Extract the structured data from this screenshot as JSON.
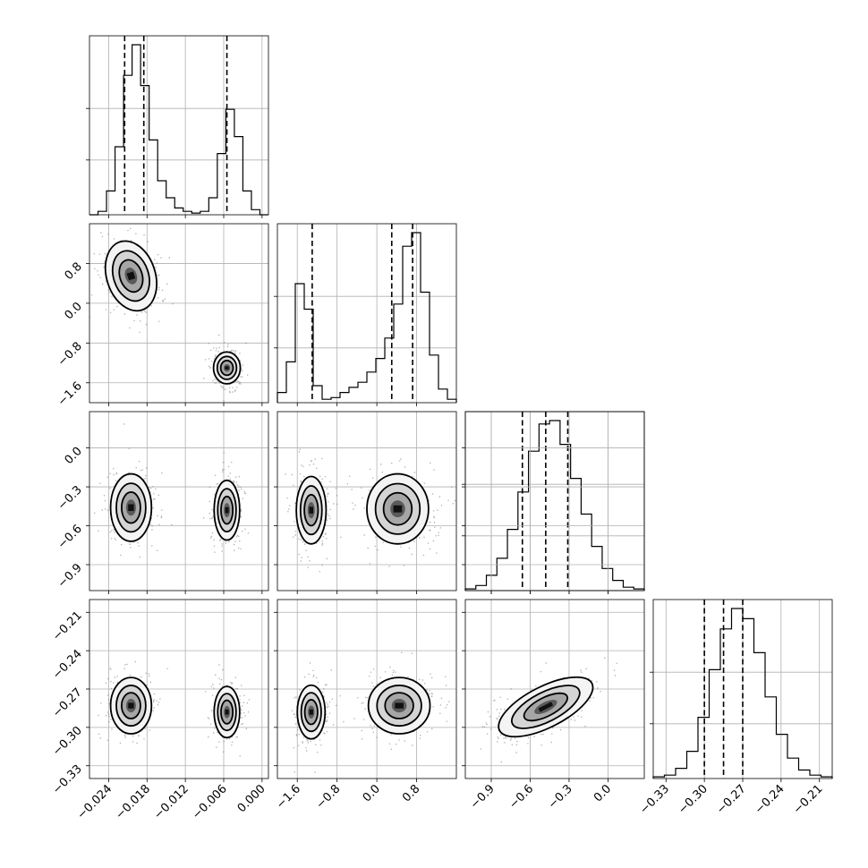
{
  "chart_data": {
    "type": "scatter",
    "parameters": [
      {
        "range": [
          -0.027,
          0.001
        ],
        "ticks": [
          -0.024,
          -0.018,
          -0.012,
          -0.006,
          0.0
        ],
        "tick_labels": [
          "−0.024",
          "−0.018",
          "−0.012",
          "−0.006",
          "0.000"
        ],
        "quantiles": [
          -0.0215,
          -0.0185,
          -0.0055
        ],
        "histogram": [
          0,
          0.02,
          0.14,
          0.4,
          0.82,
          1.0,
          0.76,
          0.44,
          0.2,
          0.1,
          0.04,
          0.02,
          0.01,
          0.02,
          0.1,
          0.36,
          0.62,
          0.46,
          0.14,
          0.03,
          0
        ]
      },
      {
        "range": [
          -2.0,
          1.6
        ],
        "ticks": [
          -1.6,
          -0.8,
          0.0,
          0.8
        ],
        "tick_labels": [
          "−1.6",
          "−0.8",
          "0.0",
          "0.8"
        ],
        "quantiles": [
          -1.3,
          0.3,
          0.72
        ],
        "histogram": [
          0.06,
          0.24,
          0.7,
          0.55,
          0.1,
          0.02,
          0.03,
          0.06,
          0.09,
          0.12,
          0.18,
          0.26,
          0.38,
          0.58,
          0.92,
          1.0,
          0.65,
          0.28,
          0.08,
          0.02
        ]
      },
      {
        "range": [
          -1.1,
          0.28
        ],
        "ticks": [
          -0.9,
          -0.6,
          -0.3,
          0.0
        ],
        "tick_labels": [
          "−0.9",
          "−0.6",
          "−0.3",
          "0.0"
        ],
        "quantiles": [
          -0.66,
          -0.48,
          -0.31
        ],
        "histogram": [
          0.01,
          0.03,
          0.09,
          0.19,
          0.36,
          0.58,
          0.82,
          0.98,
          1.0,
          0.86,
          0.66,
          0.45,
          0.26,
          0.13,
          0.06,
          0.02,
          0.01
        ]
      },
      {
        "range": [
          -0.34,
          -0.2
        ],
        "ticks": [
          -0.33,
          -0.3,
          -0.27,
          -0.24,
          -0.21
        ],
        "tick_labels": [
          "−0.33",
          "−0.30",
          "−0.27",
          "−0.24",
          "−0.21"
        ],
        "quantiles": [
          -0.3,
          -0.285,
          -0.27
        ],
        "histogram": [
          0.01,
          0.02,
          0.06,
          0.16,
          0.36,
          0.64,
          0.88,
          1.0,
          0.94,
          0.74,
          0.48,
          0.26,
          0.12,
          0.05,
          0.02,
          0.01
        ]
      }
    ],
    "pairs": [
      {
        "row": 1,
        "col": 0,
        "modes": [
          {
            "cx": -0.0205,
            "cy": 0.55,
            "rx": 0.0038,
            "ry": 0.72,
            "angle": -18
          },
          {
            "cx": -0.0055,
            "cy": -1.3,
            "rx": 0.0021,
            "ry": 0.32,
            "angle": 0
          }
        ]
      },
      {
        "row": 2,
        "col": 0,
        "modes": [
          {
            "cx": -0.0205,
            "cy": -0.46,
            "rx": 0.0032,
            "ry": 0.26,
            "angle": 0
          },
          {
            "cx": -0.0055,
            "cy": -0.48,
            "rx": 0.002,
            "ry": 0.23,
            "angle": 0
          }
        ]
      },
      {
        "row": 2,
        "col": 1,
        "modes": [
          {
            "cx": -1.32,
            "cy": -0.48,
            "rx": 0.3,
            "ry": 0.26,
            "angle": 0
          },
          {
            "cx": 0.42,
            "cy": -0.47,
            "rx": 0.62,
            "ry": 0.27,
            "angle": 0
          }
        ]
      },
      {
        "row": 2,
        "col": 2,
        "modes": []
      },
      {
        "row": 3,
        "col": 0,
        "modes": [
          {
            "cx": -0.0205,
            "cy": -0.283,
            "rx": 0.0032,
            "ry": 0.022,
            "angle": 0
          },
          {
            "cx": -0.0055,
            "cy": -0.288,
            "rx": 0.002,
            "ry": 0.02,
            "angle": 0
          }
        ]
      },
      {
        "row": 3,
        "col": 1,
        "modes": [
          {
            "cx": -1.32,
            "cy": -0.288,
            "rx": 0.28,
            "ry": 0.021,
            "angle": 0
          },
          {
            "cx": 0.45,
            "cy": -0.283,
            "rx": 0.62,
            "ry": 0.022,
            "angle": 0
          }
        ]
      },
      {
        "row": 3,
        "col": 2,
        "modes": [
          {
            "cx": -0.48,
            "cy": -0.284,
            "rx": 0.4,
            "ry": 0.016,
            "angle": -27
          }
        ]
      }
    ],
    "grid": true
  }
}
